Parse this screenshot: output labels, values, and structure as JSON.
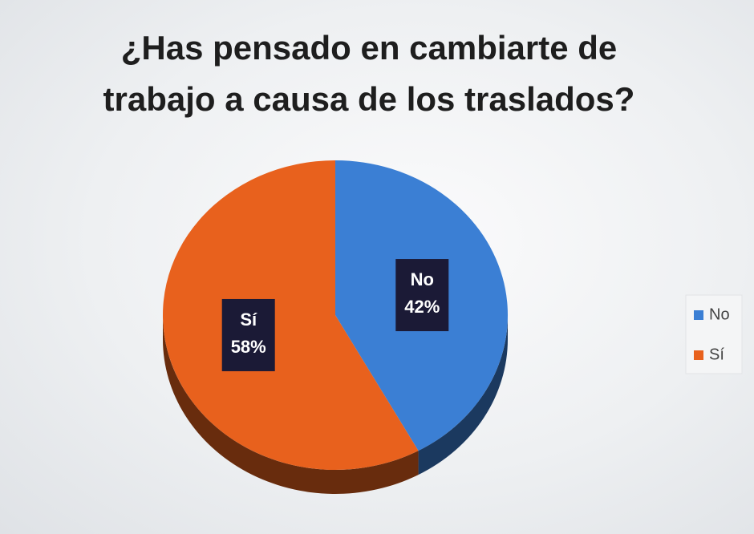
{
  "chart_data": {
    "type": "pie",
    "title": "¿Has pensado en cambiarte de trabajo a causa de los traslados?",
    "categories": [
      "No",
      "Sí"
    ],
    "values": [
      42,
      58
    ],
    "value_labels": [
      "42%",
      "58%"
    ],
    "colors": [
      "#3b7fd4",
      "#e8611d"
    ],
    "legend": "right"
  }
}
